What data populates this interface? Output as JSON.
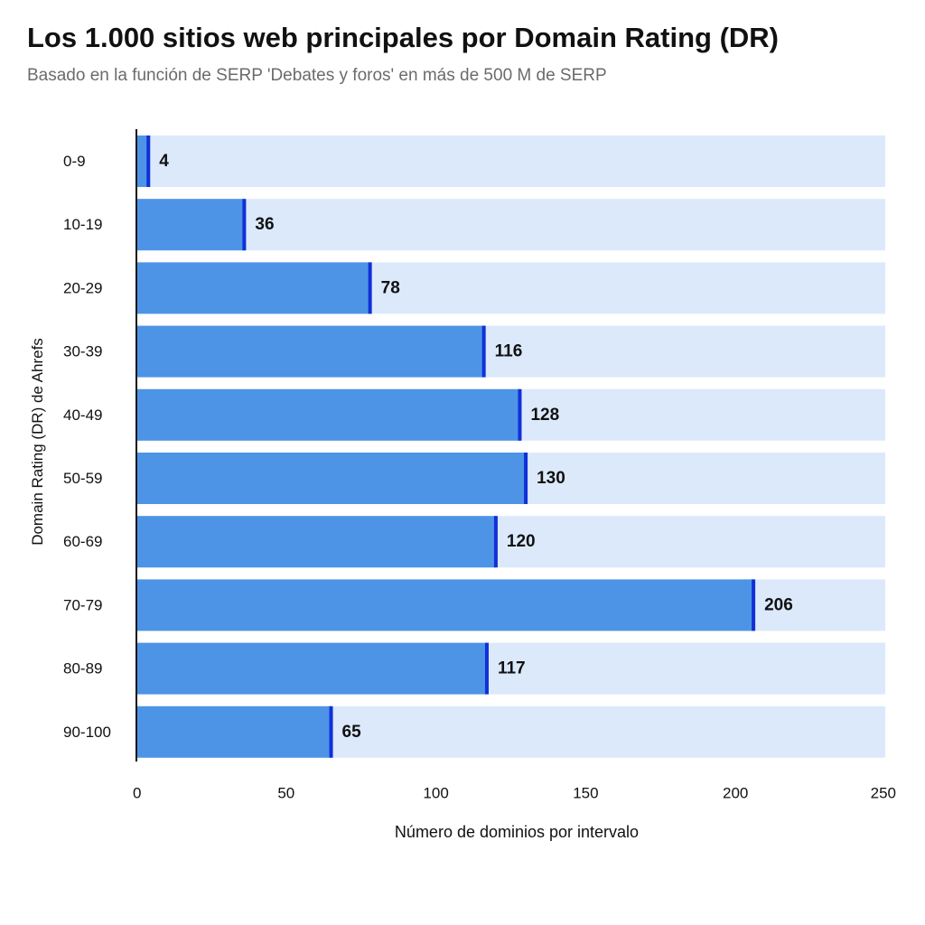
{
  "colors": {
    "bar": "#4d94e6",
    "bar_background": "#dbe9fb",
    "bar_end": "#1030d8",
    "axis": "#111111"
  },
  "chart_data": {
    "type": "bar",
    "orientation": "horizontal",
    "title": "Los 1.000 sitios web principales por Domain Rating (DR)",
    "subtitle": "Basado en la función de SERP 'Debates y foros' en más de 500 M de SERP",
    "xlabel": "Número de dominios por intervalo",
    "ylabel": "Domain Rating (DR) de Ahrefs",
    "categories": [
      "0-9",
      "10-19",
      "20-29",
      "30-39",
      "40-49",
      "50-59",
      "60-69",
      "70-79",
      "80-89",
      "90-100"
    ],
    "values": [
      4,
      36,
      78,
      116,
      128,
      130,
      120,
      206,
      117,
      65
    ],
    "value_labels": [
      "4",
      "36",
      "78",
      "116",
      "128",
      "130",
      "120",
      "206",
      "117",
      "65"
    ],
    "xlim": [
      0,
      250
    ],
    "xticks": [
      0,
      50,
      100,
      150,
      200,
      250
    ],
    "xtick_labels": [
      "0",
      "50",
      "100",
      "150",
      "200",
      "250"
    ],
    "grid": false,
    "legend": "none"
  }
}
